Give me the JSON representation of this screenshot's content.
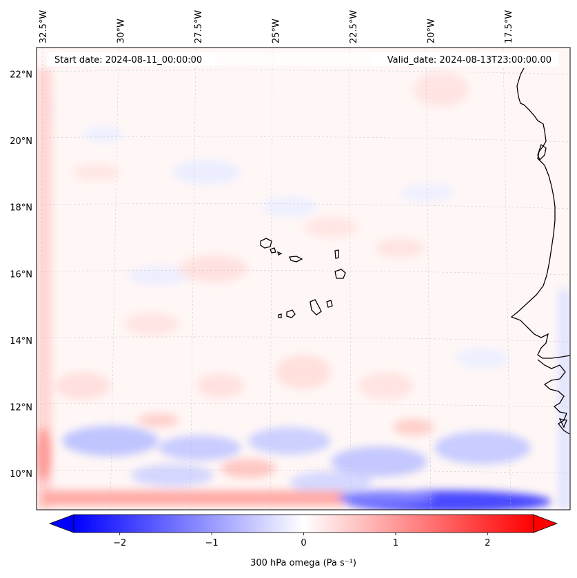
{
  "header": {
    "start_date": "Start date: 2024-08-11_00:00:00",
    "valid_date": "Valid_date: 2024-08-13T23:00:00.00"
  },
  "map": {
    "region": "Cabo Verde / West African coast, eastern tropical Atlantic",
    "lon_labels": [
      {
        "text": "32.5°W",
        "lon": -32.5
      },
      {
        "text": "30°W",
        "lon": -30
      },
      {
        "text": "27.5°W",
        "lon": -27.5
      },
      {
        "text": "25°W",
        "lon": -25
      },
      {
        "text": "22.5°W",
        "lon": -22.5
      },
      {
        "text": "20°W",
        "lon": -20
      },
      {
        "text": "17.5°W",
        "lon": -17.5
      }
    ],
    "lat_labels": [
      {
        "text": "22°N",
        "lat": 22
      },
      {
        "text": "20°N",
        "lat": 20
      },
      {
        "text": "18°N",
        "lat": 18
      },
      {
        "text": "16°N",
        "lat": 16
      },
      {
        "text": "14°N",
        "lat": 14
      },
      {
        "text": "12°N",
        "lat": 12
      },
      {
        "text": "10°N",
        "lat": 10
      }
    ],
    "extent": {
      "lon_min": -32.7,
      "lon_max": -15.5,
      "lat_min": 8.9,
      "lat_max": 22.8
    }
  },
  "colorbar": {
    "label": "300 hPa omega (Pa s⁻¹)",
    "ticks": [
      {
        "text": "−2",
        "value": -2
      },
      {
        "text": "−1",
        "value": -1
      },
      {
        "text": "0",
        "value": 0
      },
      {
        "text": "1",
        "value": 1
      },
      {
        "text": "2",
        "value": 2
      }
    ],
    "vmin": -2.5,
    "vmax": 2.5,
    "colormap": "bwr",
    "color_min": "#0000ff",
    "color_mid": "#ffffff",
    "color_max": "#ff0000"
  }
}
